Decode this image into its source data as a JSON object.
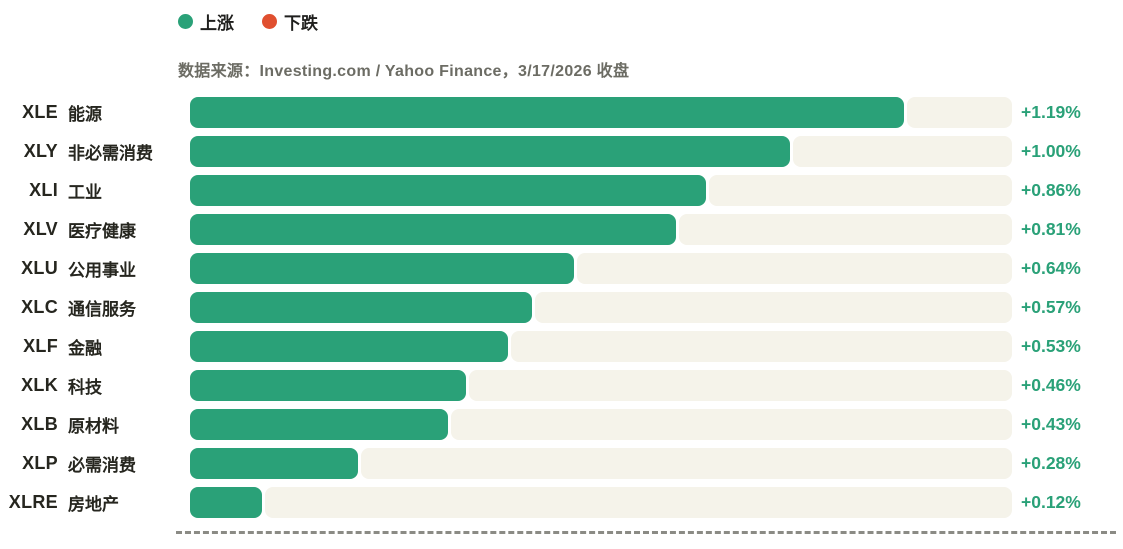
{
  "legend": {
    "items": [
      {
        "label": "上涨",
        "color": "#2aa178",
        "icon": "up-dot"
      },
      {
        "label": "下跌",
        "color": "#e04f2f",
        "icon": "down-dot"
      }
    ]
  },
  "source_note": "数据来源：Investing.com / Yahoo Finance，3/17/2026 收盘",
  "colors": {
    "bar_up": "#2aa178",
    "bar_track": "#f5f3ea",
    "value_text": "#2aa178",
    "label_text": "#26261f",
    "source_text": "#6c6c64",
    "axis_dash": "#8b8b85"
  },
  "chart_data": {
    "type": "bar",
    "orientation": "horizontal",
    "title": "",
    "categories": [
      "XLE 能源",
      "XLY 非必需消费",
      "XLI 工业",
      "XLV 医疗健康",
      "XLU 公用事业",
      "XLC 通信服务",
      "XLF 金融",
      "XLK 科技",
      "XLB 原材料",
      "XLP 必需消费",
      "XLRE 房地产"
    ],
    "values": [
      1.19,
      1.0,
      0.86,
      0.81,
      0.64,
      0.57,
      0.53,
      0.46,
      0.43,
      0.28,
      0.12
    ],
    "value_labels": [
      "+1.19%",
      "+1.00%",
      "+0.86%",
      "+0.81%",
      "+0.64%",
      "+0.57%",
      "+0.53%",
      "+0.46%",
      "+0.43%",
      "+0.28%",
      "+0.12%"
    ],
    "unit": "%",
    "xlim": [
      0,
      1.37
    ],
    "grid": false,
    "legend_position": "top-left",
    "legend_entries": [
      "上涨",
      "下跌"
    ]
  },
  "rows": [
    {
      "ticker": "XLE",
      "name": "能源",
      "value": 1.19,
      "value_label": "+1.19%"
    },
    {
      "ticker": "XLY",
      "name": "非必需消费",
      "value": 1.0,
      "value_label": "+1.00%"
    },
    {
      "ticker": "XLI",
      "name": "工业",
      "value": 0.86,
      "value_label": "+0.86%"
    },
    {
      "ticker": "XLV",
      "name": "医疗健康",
      "value": 0.81,
      "value_label": "+0.81%"
    },
    {
      "ticker": "XLU",
      "name": "公用事业",
      "value": 0.64,
      "value_label": "+0.64%"
    },
    {
      "ticker": "XLC",
      "name": "通信服务",
      "value": 0.57,
      "value_label": "+0.57%"
    },
    {
      "ticker": "XLF",
      "name": "金融",
      "value": 0.53,
      "value_label": "+0.53%"
    },
    {
      "ticker": "XLK",
      "name": "科技",
      "value": 0.46,
      "value_label": "+0.46%"
    },
    {
      "ticker": "XLB",
      "name": "原材料",
      "value": 0.43,
      "value_label": "+0.43%"
    },
    {
      "ticker": "XLP",
      "name": "必需消费",
      "value": 0.28,
      "value_label": "+0.28%"
    },
    {
      "ticker": "XLRE",
      "name": "房地产",
      "value": 0.12,
      "value_label": "+0.12%"
    }
  ]
}
